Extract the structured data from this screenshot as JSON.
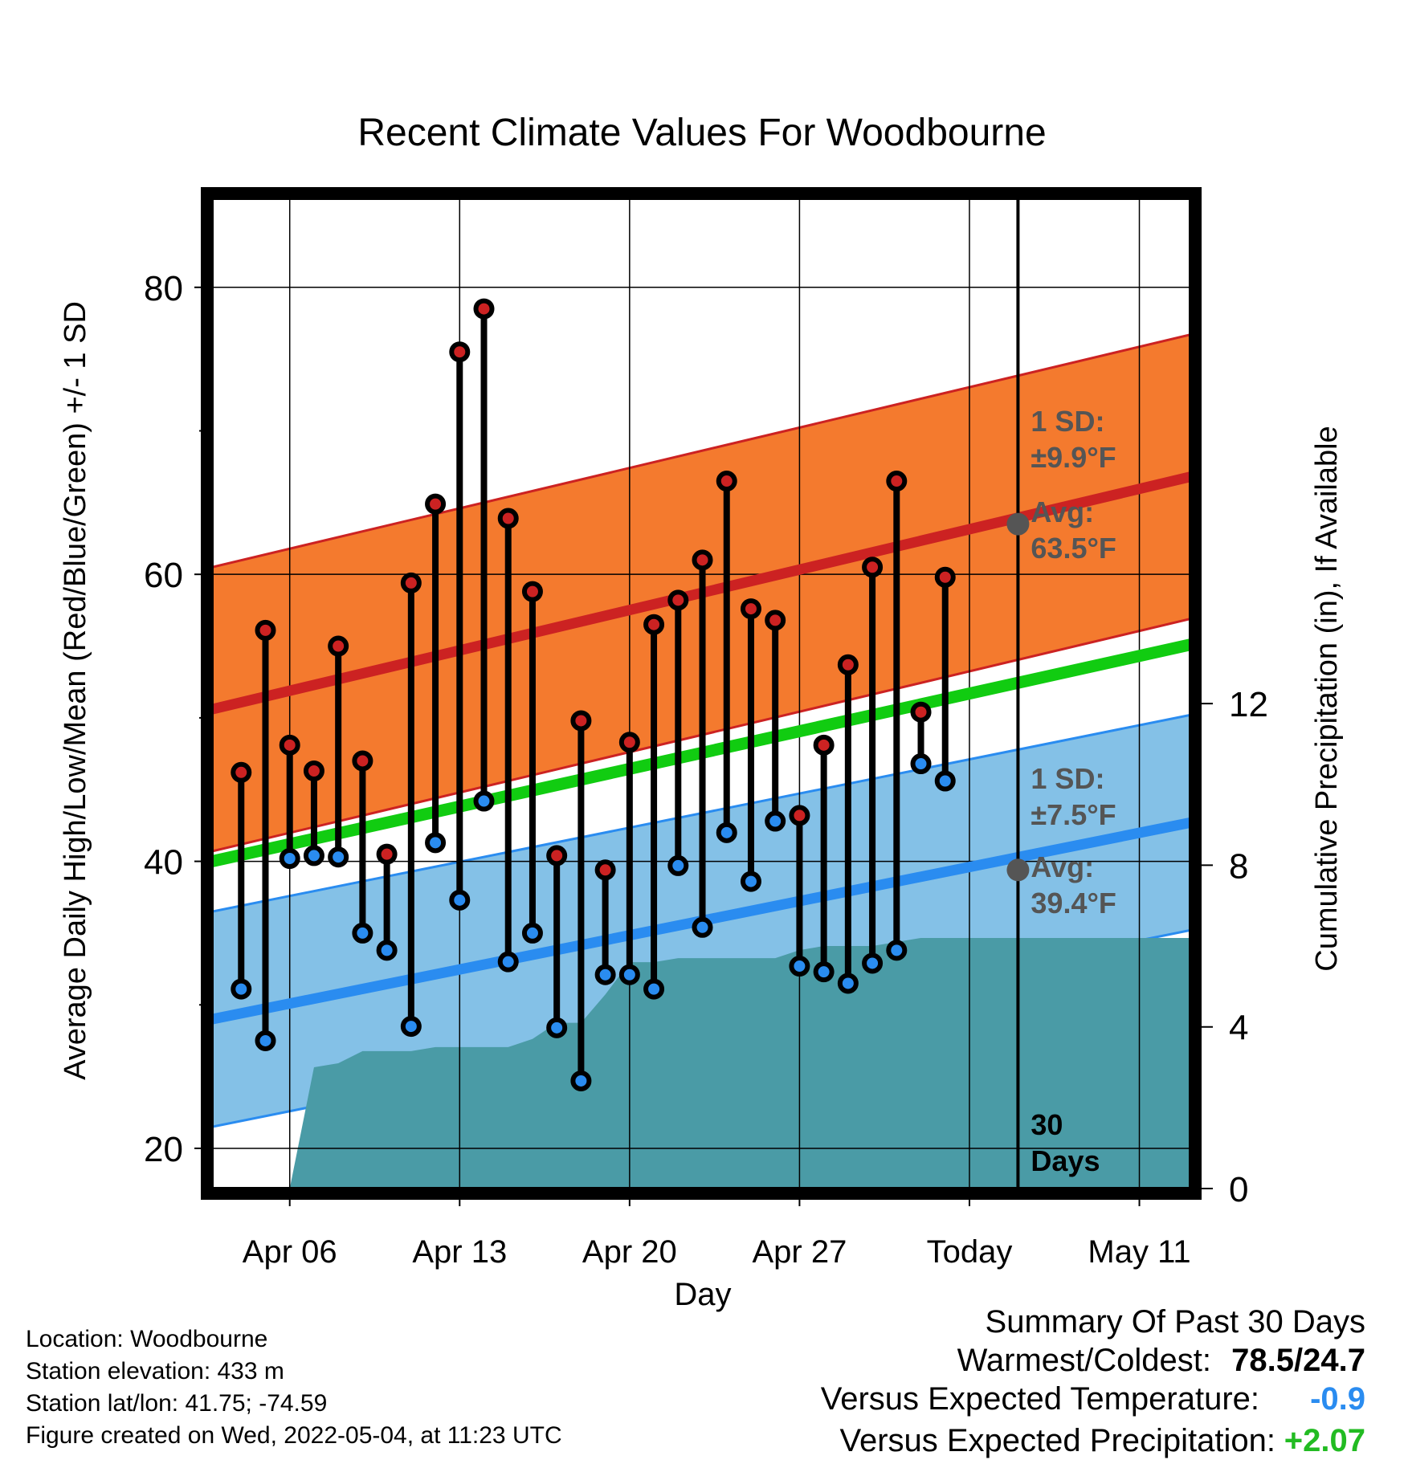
{
  "chart_data": {
    "type": "line",
    "title": "Recent Climate Values For Woodbourne",
    "xlabel": "Day",
    "ylabel": "Average Daily High/Low/Mean (Red/Blue/Green) +/- 1 SD",
    "ylabel_right": "Cumulative Precipitation (in), If Available",
    "x_ticks": [
      "Apr 06",
      "Apr 13",
      "Apr 20",
      "Apr 27",
      "Today",
      "May 11"
    ],
    "y_ticks": [
      "20",
      "40",
      "60",
      "80"
    ],
    "y2_ticks": [
      "0",
      "4",
      "8",
      "12"
    ],
    "ylim": [
      17.2,
      86.2
    ],
    "y2lim": [
      0,
      24.5
    ],
    "xlim": [
      -3.2,
      37.1
    ],
    "grid": true,
    "normal_high": {
      "start": 50.6,
      "end": 66.8,
      "sd": 9.9
    },
    "normal_low": {
      "start": 29.0,
      "end": 42.7,
      "sd": 7.5
    },
    "normal_mean": {
      "start": 40.0,
      "end": 55.1
    },
    "daily": {
      "day": [
        -2,
        -1,
        0,
        1,
        2,
        3,
        4,
        5,
        6,
        7,
        8,
        9,
        10,
        11,
        12,
        13,
        14,
        15,
        16,
        17,
        18,
        19,
        20,
        21,
        22,
        23,
        24,
        25,
        26,
        27,
        28
      ],
      "high": [
        46.2,
        56.1,
        48.1,
        46.3,
        55.0,
        47.0,
        40.5,
        59.4,
        64.9,
        75.5,
        78.5,
        63.9,
        58.8,
        40.4,
        49.8,
        39.4,
        48.3,
        56.5,
        58.2,
        61.0,
        66.5,
        57.6,
        56.8,
        43.2,
        48.1,
        53.7,
        60.5,
        66.5,
        50.4,
        59.8,
        null
      ],
      "low": [
        31.1,
        27.5,
        40.2,
        40.4,
        40.3,
        35.0,
        33.8,
        28.5,
        41.3,
        37.3,
        44.2,
        33.0,
        35.0,
        28.4,
        24.7,
        32.1,
        32.1,
        31.1,
        39.7,
        35.4,
        42.0,
        38.6,
        42.8,
        32.7,
        32.3,
        31.5,
        32.9,
        33.8,
        46.8,
        45.6,
        null
      ]
    },
    "precipitation": {
      "day": [
        0,
        1,
        2,
        3,
        4,
        5,
        6,
        7,
        8,
        9,
        10,
        11,
        12,
        13,
        14,
        15,
        16,
        17,
        18,
        19,
        20,
        21,
        22,
        23,
        24,
        25,
        26,
        27,
        28
      ],
      "cumulative": [
        0.0,
        3.0,
        3.1,
        3.4,
        3.4,
        3.4,
        3.5,
        3.5,
        3.5,
        3.5,
        3.7,
        4.1,
        4.1,
        4.8,
        5.6,
        5.6,
        5.7,
        5.7,
        5.7,
        5.7,
        5.7,
        5.9,
        6.0,
        6.0,
        6.0,
        6.1,
        6.2,
        6.2,
        6.2
      ]
    },
    "today_marker": {
      "day": 30,
      "label_top": "30",
      "label_bottom": "Days"
    },
    "annotations": {
      "high_sd_label": "1 SD:",
      "high_sd_value": "±9.9°F",
      "high_avg_label": "Avg:",
      "high_avg_value": "63.5°F",
      "high_avg_point": 63.5,
      "low_sd_label": "1 SD:",
      "low_sd_value": "±7.5°F",
      "low_avg_label": "Avg:",
      "low_avg_value": "39.4°F",
      "low_avg_point": 39.4
    }
  },
  "footer": {
    "location": "Location: Woodbourne",
    "elevation": "Station elevation: 433 m",
    "latlon": "Station lat/lon: 41.75; -74.59",
    "created": "Figure created on Wed, 2022-05-04, at 11:23 UTC"
  },
  "summary": {
    "heading": "Summary Of Past 30 Days",
    "warmest_label": "Warmest/Coldest:",
    "warmest_value": "78.5/24.7",
    "temp_label": "Versus Expected Temperature:",
    "temp_value": "-0.9",
    "temp_color": "#2a8cf0",
    "precip_label": "Versus Expected Precipitation:",
    "precip_value": "+2.07",
    "precip_color": "#22bb22"
  },
  "colors": {
    "high_band": "#f47a2e",
    "high_line": "#cc2222",
    "low_band": "#84c1e7",
    "low_line": "#2a8cf0",
    "mean_line": "#11cc11",
    "precip_fill": "#4a9ba6",
    "high_dot": "#cc2222",
    "low_dot": "#2a8cf0",
    "annotation_text": "#555555",
    "annotation_dot": "#555555"
  }
}
